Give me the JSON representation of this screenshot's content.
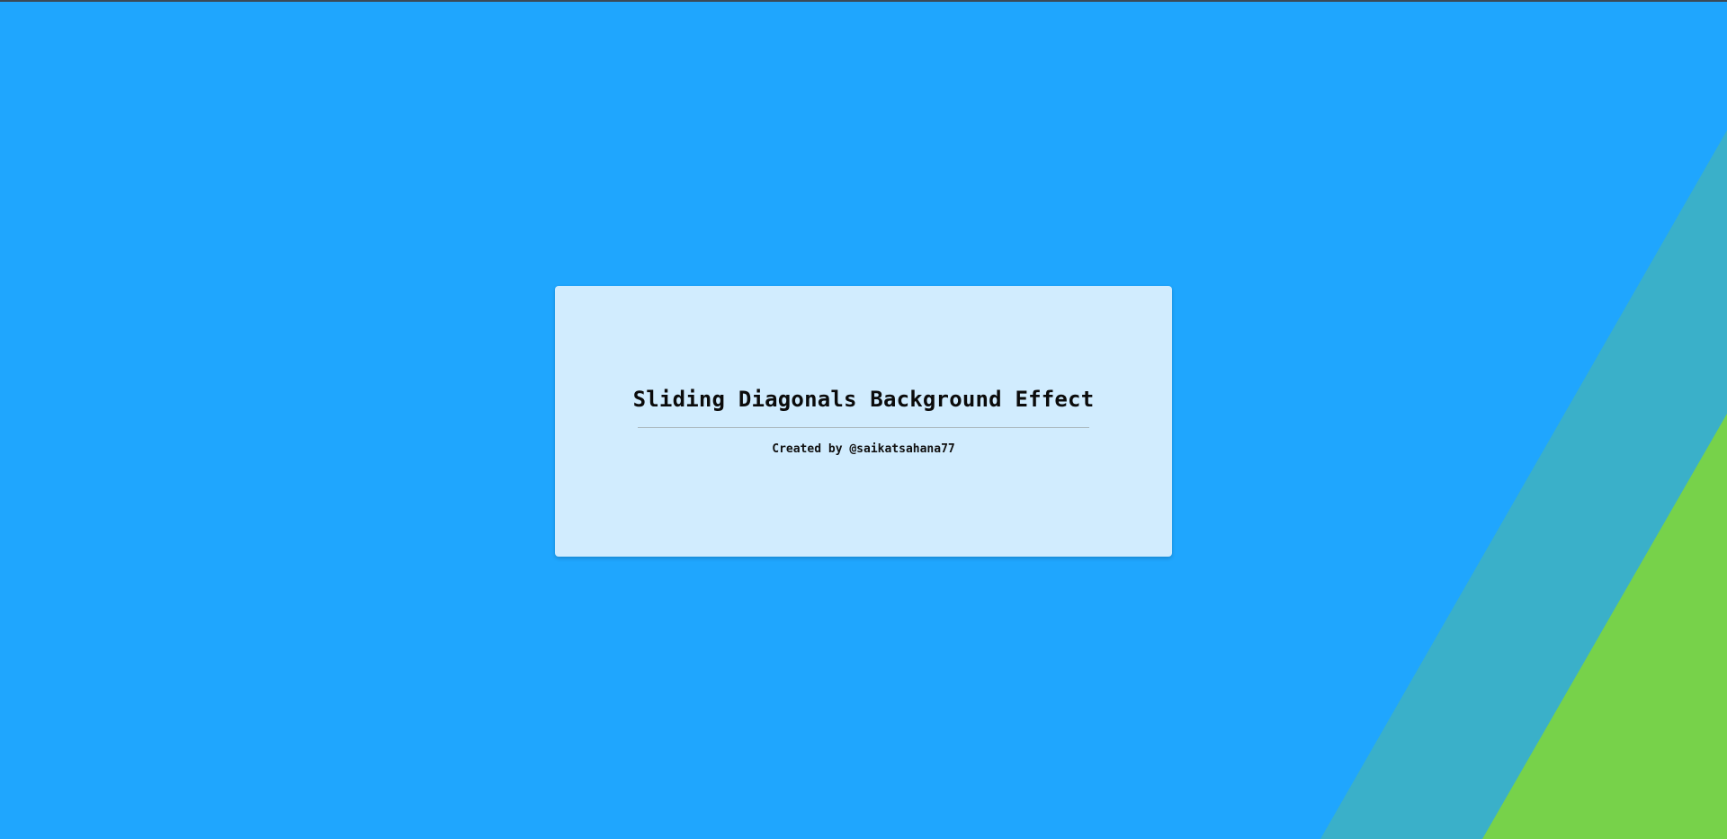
{
  "theme": {
    "background": "#1fa6fe",
    "diagonal_teal": "#3ab0c9",
    "diagonal_green": "#77d24a",
    "card_background": "#d1ecfe",
    "divider": "#a9b6bc"
  },
  "card": {
    "title": "Sliding Diagonals Background Effect",
    "credit": "Created by @saikatsahana77"
  }
}
